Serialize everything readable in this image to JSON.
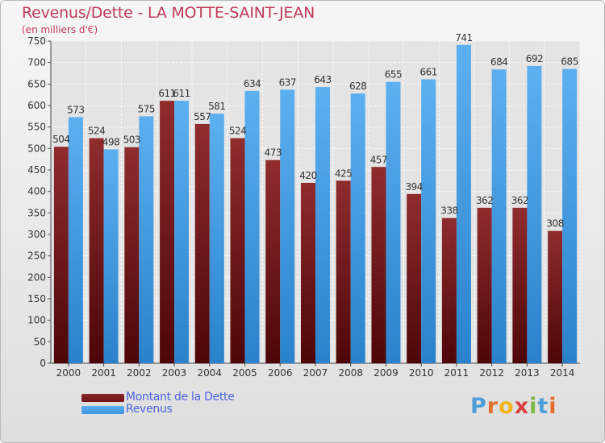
{
  "header": {
    "title": "Revenus/Dette - LA MOTTE-SAINT-JEAN",
    "subtitle": "(en milliers d'€)"
  },
  "colors": {
    "title": "#c0395a",
    "dette": "#6e1417",
    "revenus": "#3d96df",
    "legend_text": "#4c64e0"
  },
  "legend": {
    "items": [
      {
        "label": "Montant de la Dette",
        "color": "#6e1417"
      },
      {
        "label": "Revenus",
        "color": "#3d96df"
      }
    ]
  },
  "logo": {
    "text": "Proxiti",
    "letter_colors": [
      "#4f9ed9",
      "#e46c2c",
      "#f2b41e",
      "#d8413e",
      "#7db842",
      "#4f9ed9",
      "#e46c2c"
    ]
  },
  "chart_data": {
    "type": "bar",
    "categories": [
      "2000",
      "2001",
      "2002",
      "2003",
      "2004",
      "2005",
      "2006",
      "2007",
      "2008",
      "2009",
      "2010",
      "2011",
      "2012",
      "2013",
      "2014"
    ],
    "series": [
      {
        "name": "Montant de la Dette",
        "values": [
          504,
          524,
          503,
          611,
          557,
          524,
          473,
          420,
          425,
          457,
          394,
          338,
          362,
          362,
          308
        ]
      },
      {
        "name": "Revenus",
        "values": [
          573,
          498,
          575,
          611,
          581,
          634,
          637,
          643,
          628,
          655,
          661,
          741,
          684,
          692,
          685
        ]
      }
    ],
    "ylim": [
      0,
      750
    ],
    "yticks": [
      0,
      50,
      100,
      150,
      200,
      250,
      300,
      350,
      400,
      450,
      500,
      550,
      600,
      650,
      700,
      750
    ],
    "grid": true,
    "legend_position": "bottom-left"
  }
}
